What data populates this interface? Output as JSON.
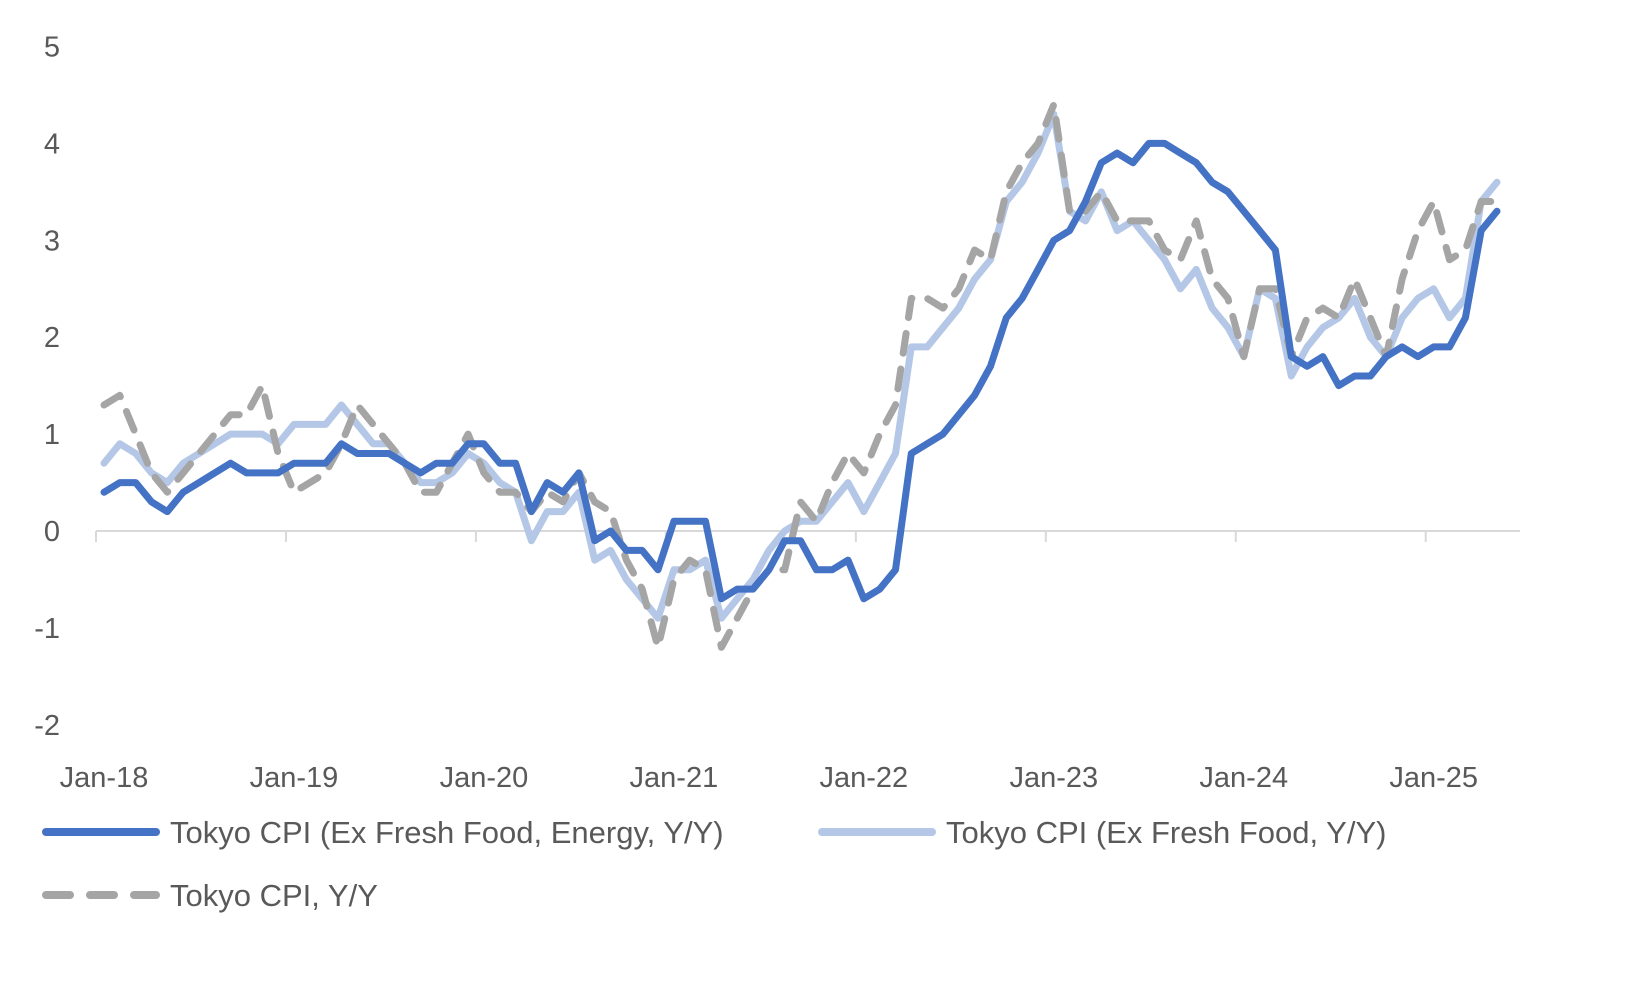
{
  "chart_data": {
    "type": "line",
    "title": "",
    "xlabel": "",
    "ylabel": "",
    "ylim": [
      -2,
      5
    ],
    "yticks": [
      "-2",
      "-1",
      "0",
      "1",
      "2",
      "3",
      "4",
      "5"
    ],
    "xticks": [
      "Jan-18",
      "Jan-19",
      "Jan-20",
      "Jan-21",
      "Jan-22",
      "Jan-23",
      "Jan-24",
      "Jan-25"
    ],
    "x_range": [
      "Jan-18",
      "May-25"
    ],
    "frequency": "monthly",
    "grid": false,
    "legend_position": "bottom",
    "series": [
      {
        "name": "Tokyo CPI (Ex Fresh Food, Energy, Y/Y)",
        "color": "#4472C4",
        "style": "solid",
        "values": [
          0.4,
          0.5,
          0.5,
          0.3,
          0.2,
          0.4,
          0.5,
          0.6,
          0.7,
          0.6,
          0.6,
          0.6,
          0.7,
          0.7,
          0.7,
          0.9,
          0.8,
          0.8,
          0.8,
          0.7,
          0.6,
          0.7,
          0.7,
          0.9,
          0.9,
          0.7,
          0.7,
          0.2,
          0.5,
          0.4,
          0.6,
          -0.1,
          0.0,
          -0.2,
          -0.2,
          -0.4,
          0.1,
          0.1,
          0.1,
          -0.7,
          -0.6,
          -0.6,
          -0.4,
          -0.1,
          -0.1,
          -0.4,
          -0.4,
          -0.3,
          -0.7,
          -0.6,
          -0.4,
          0.8,
          0.9,
          1.0,
          1.2,
          1.4,
          1.7,
          2.2,
          2.4,
          2.7,
          3.0,
          3.1,
          3.4,
          3.8,
          3.9,
          3.8,
          4.0,
          4.0,
          3.9,
          3.8,
          3.6,
          3.5,
          3.3,
          3.1,
          2.9,
          1.8,
          1.7,
          1.8,
          1.5,
          1.6,
          1.6,
          1.8,
          1.9,
          1.8,
          1.9,
          1.9,
          2.2,
          3.1,
          3.3
        ]
      },
      {
        "name": "Tokyo CPI (Ex Fresh Food, Y/Y)",
        "color": "#B4C7E7",
        "style": "solid",
        "values": [
          0.7,
          0.9,
          0.8,
          0.6,
          0.5,
          0.7,
          0.8,
          0.9,
          1.0,
          1.0,
          1.0,
          0.9,
          1.1,
          1.1,
          1.1,
          1.3,
          1.1,
          0.9,
          0.9,
          0.7,
          0.5,
          0.5,
          0.6,
          0.8,
          0.7,
          0.5,
          0.4,
          -0.1,
          0.2,
          0.2,
          0.4,
          -0.3,
          -0.2,
          -0.5,
          -0.7,
          -0.9,
          -0.4,
          -0.4,
          -0.3,
          -0.9,
          -0.7,
          -0.5,
          -0.2,
          0.0,
          0.1,
          0.1,
          0.3,
          0.5,
          0.2,
          0.5,
          0.8,
          1.9,
          1.9,
          2.1,
          2.3,
          2.6,
          2.8,
          3.4,
          3.6,
          3.9,
          4.3,
          3.3,
          3.2,
          3.5,
          3.1,
          3.2,
          3.0,
          2.8,
          2.5,
          2.7,
          2.3,
          2.1,
          1.8,
          2.5,
          2.4,
          1.6,
          1.9,
          2.1,
          2.2,
          2.4,
          2.0,
          1.8,
          2.2,
          2.4,
          2.5,
          2.2,
          2.4,
          3.4,
          3.6
        ]
      },
      {
        "name": "Tokyo CPI, Y/Y",
        "color": "#A5A5A5",
        "style": "dashed",
        "values": [
          1.3,
          1.4,
          1.0,
          0.6,
          0.4,
          0.6,
          0.8,
          1.0,
          1.2,
          1.2,
          1.5,
          0.8,
          0.4,
          0.5,
          0.6,
          0.9,
          1.3,
          1.1,
          0.9,
          0.7,
          0.4,
          0.4,
          0.7,
          1.0,
          0.6,
          0.4,
          0.4,
          0.2,
          0.4,
          0.3,
          0.6,
          0.3,
          0.2,
          -0.3,
          -0.6,
          -1.2,
          -0.5,
          -0.3,
          -0.4,
          -1.2,
          -0.9,
          -0.6,
          -0.4,
          -0.4,
          0.3,
          0.1,
          0.5,
          0.8,
          0.6,
          1.0,
          1.3,
          2.4,
          2.4,
          2.3,
          2.5,
          2.9,
          2.8,
          3.5,
          3.8,
          4.0,
          4.4,
          3.3,
          3.3,
          3.5,
          3.2,
          3.2,
          3.2,
          2.9,
          2.8,
          3.2,
          2.6,
          2.4,
          1.8,
          2.5,
          2.5,
          1.8,
          2.2,
          2.3,
          2.2,
          2.6,
          2.2,
          1.8,
          2.6,
          3.1,
          3.4,
          2.8,
          2.9,
          3.4,
          3.4
        ]
      }
    ]
  }
}
